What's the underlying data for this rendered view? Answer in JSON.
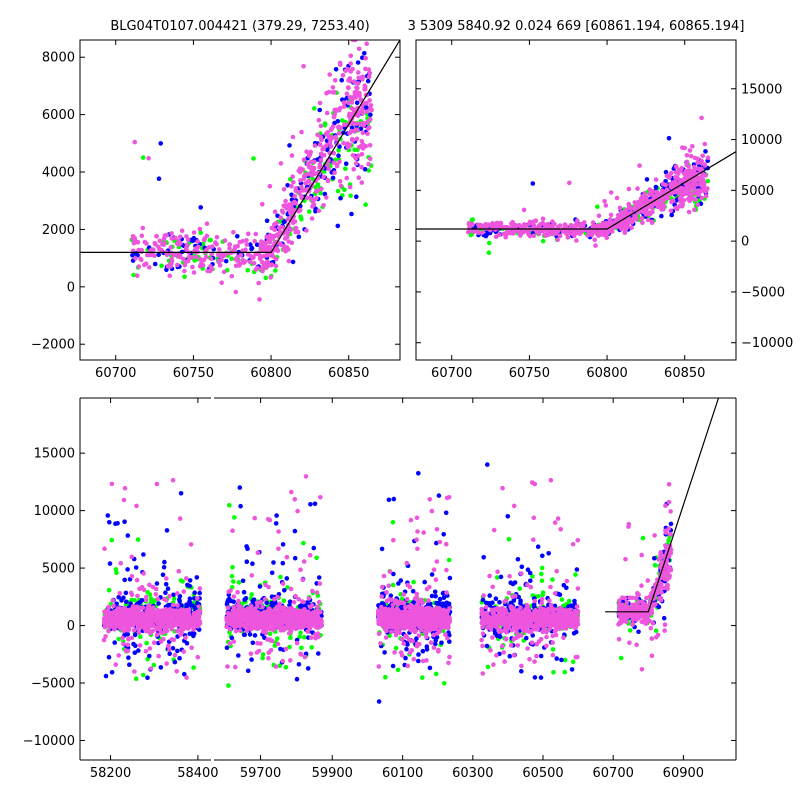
{
  "titles": {
    "left": "BLG04T0107.004421 (379.29, 7253.40)",
    "right": "3 5309 5840.92 0.024 669 [60861.194, 60865.194]"
  },
  "colors": {
    "series_green": "#00ff00",
    "series_blue": "#0000ff",
    "series_magenta": "#ee55dd",
    "model_line": "#000000"
  },
  "chart_data": [
    {
      "id": "top-left",
      "type": "scatter",
      "title": "BLG04T0107.004421 (379.29, 7253.40)",
      "xlim": [
        60677,
        60883
      ],
      "ylim": [
        -2550,
        8600
      ],
      "xticks": [
        60700,
        60750,
        60800,
        60850
      ],
      "yticks": [
        -2000,
        0,
        2000,
        4000,
        6000,
        8000
      ],
      "ytick_side": "left",
      "series": [
        {
          "name": "green",
          "color": "#00ff00",
          "trend": [
            [
              60725,
              1100
            ],
            [
              60800,
              1200
            ],
            [
              60840,
              5200
            ],
            [
              60865,
              5600
            ]
          ]
        },
        {
          "name": "blue",
          "color": "#0000ff",
          "trend": [
            [
              60725,
              1150
            ],
            [
              60800,
              1250
            ],
            [
              60840,
              5000
            ],
            [
              60865,
              6800
            ]
          ]
        },
        {
          "name": "magenta",
          "color": "#ee55dd",
          "trend": [
            [
              60715,
              1300
            ],
            [
              60800,
              1200
            ],
            [
              60840,
              5200
            ],
            [
              60865,
              7000
            ]
          ]
        }
      ],
      "model": [
        [
          60677,
          1200
        ],
        [
          60800,
          1200
        ],
        [
          60883,
          8600
        ]
      ]
    },
    {
      "id": "top-right",
      "type": "scatter",
      "title": "3 5309 5840.92 0.024 669 [60861.194, 60865.194]",
      "xlim": [
        60677,
        60883
      ],
      "ylim": [
        -11700,
        19800
      ],
      "xticks": [
        60700,
        60750,
        60800,
        60850
      ],
      "yticks": [
        -10000,
        -5000,
        0,
        5000,
        10000,
        15000
      ],
      "ytick_side": "right",
      "series": [
        {
          "name": "green",
          "color": "#00ff00",
          "trend": [
            [
              60725,
              1100
            ],
            [
              60800,
              1200
            ],
            [
              60840,
              4500
            ],
            [
              60865,
              5600
            ]
          ]
        },
        {
          "name": "blue",
          "color": "#0000ff",
          "trend": [
            [
              60725,
              1150
            ],
            [
              60800,
              1250
            ],
            [
              60840,
              4800
            ],
            [
              60865,
              6800
            ]
          ]
        },
        {
          "name": "magenta",
          "color": "#ee55dd",
          "trend": [
            [
              60715,
              1300
            ],
            [
              60800,
              1200
            ],
            [
              60840,
              4800
            ],
            [
              60865,
              7000
            ]
          ]
        }
      ],
      "model": [
        [
          60677,
          1200
        ],
        [
          60800,
          1200
        ],
        [
          60883,
          8800
        ]
      ]
    },
    {
      "id": "bottom",
      "type": "scatter",
      "ylim": [
        -11700,
        19800
      ],
      "yticks": [
        -10000,
        -5000,
        0,
        5000,
        10000,
        15000
      ],
      "ytick_side": "left",
      "segments": [
        {
          "xlim": [
            58130,
            58430
          ],
          "xticks": [
            58200,
            58400
          ],
          "clusters": [
            [
              58185,
              58405
            ]
          ]
        },
        {
          "xlim": [
            59570,
            59930
          ],
          "xticks": [
            59700,
            59900
          ],
          "clusters": [
            [
              59605,
              59870
            ]
          ]
        },
        {
          "xlim": [
            59930,
            61050
          ],
          "xticks": [
            60100,
            60300,
            60500,
            60700,
            60900
          ],
          "clusters": [
            [
              60030,
              60235
            ],
            [
              60325,
              60600
            ],
            [
              60715,
              60865
            ]
          ]
        }
      ],
      "model": [
        [
          60677,
          1200
        ],
        [
          60800,
          1200
        ],
        [
          61000,
          19800
        ]
      ]
    }
  ]
}
